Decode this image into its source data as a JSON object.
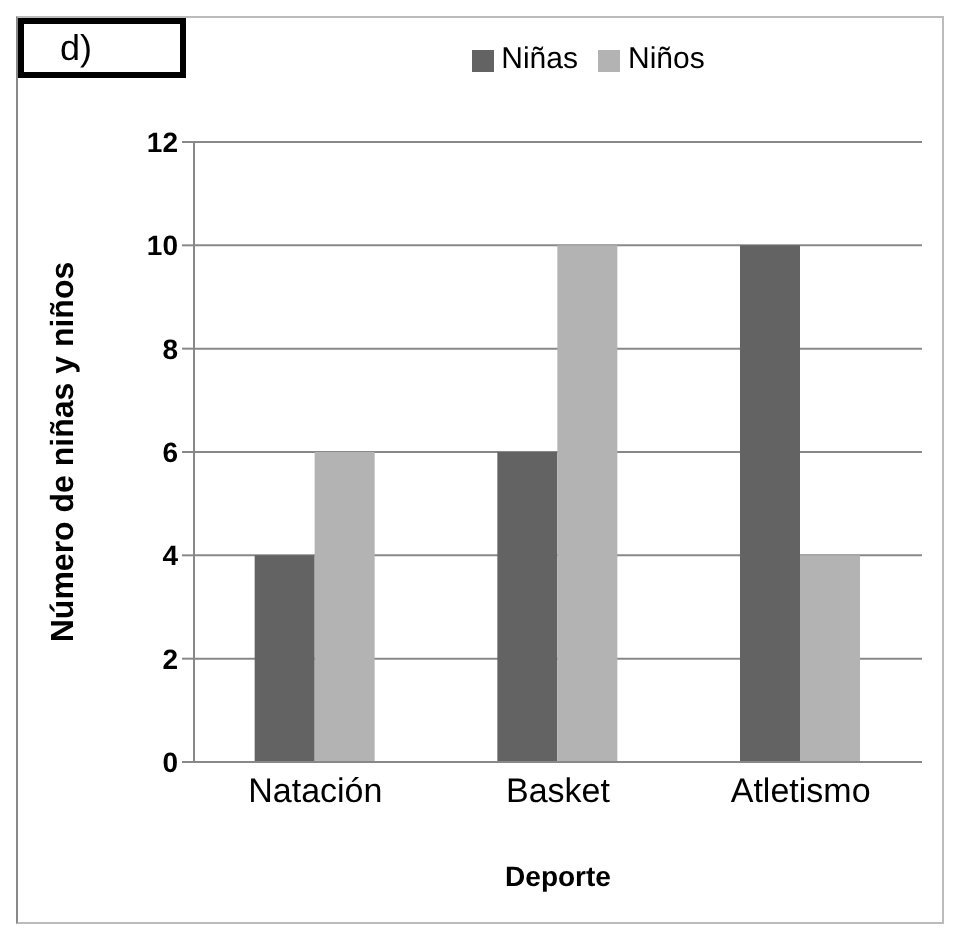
{
  "chart_data": {
    "type": "bar",
    "title": "d)",
    "xlabel": "Deporte",
    "ylabel": "Número de niñas y niños",
    "categories": [
      "Natación",
      "Basket",
      "Atletismo"
    ],
    "series": [
      {
        "name": "Niñas",
        "color": "#636363",
        "values": [
          4,
          6,
          10
        ]
      },
      {
        "name": "Niños",
        "color": "#b3b3b3",
        "values": [
          6,
          10,
          4
        ]
      }
    ],
    "ylim": [
      0,
      12
    ],
    "yticks": [
      0,
      2,
      4,
      6,
      8,
      10,
      12
    ],
    "grid": "y",
    "legend": "top"
  }
}
